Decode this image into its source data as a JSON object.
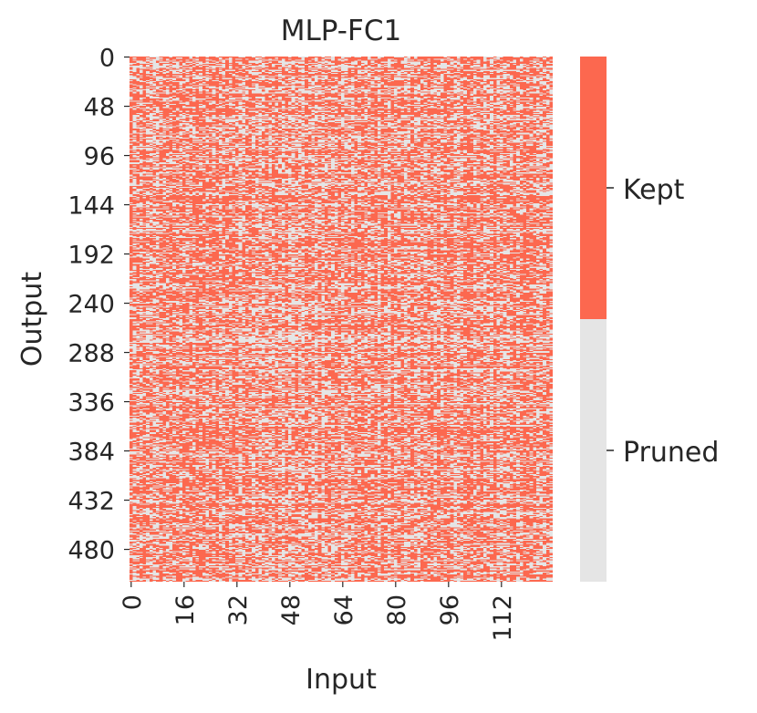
{
  "chart_data": {
    "type": "heatmap",
    "title": "MLP-FC1",
    "xlabel": "Input",
    "ylabel": "Output",
    "columns": 128,
    "rows": 512,
    "x_ticks": [
      "0",
      "16",
      "32",
      "48",
      "64",
      "80",
      "96",
      "112"
    ],
    "x_tick_values": [
      0,
      16,
      32,
      48,
      64,
      80,
      96,
      112
    ],
    "y_ticks": [
      "0",
      "48",
      "96",
      "144",
      "192",
      "240",
      "288",
      "336",
      "384",
      "432",
      "480"
    ],
    "y_tick_values": [
      0,
      48,
      96,
      144,
      192,
      240,
      288,
      336,
      384,
      432,
      480
    ],
    "legend": [
      {
        "label": "Kept",
        "color": "#fc684f"
      },
      {
        "label": "Pruned",
        "color": "#e5e5e5"
      }
    ],
    "legend_placement": "right",
    "grid": false
  }
}
